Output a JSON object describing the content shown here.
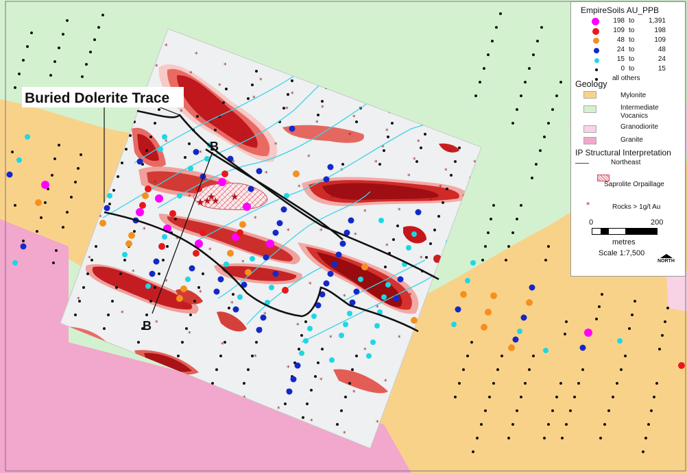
{
  "map_annotations": {
    "dolerite_label": "Buried Dolerite Trace",
    "section_start": "B",
    "section_end": "B"
  },
  "legend": {
    "soils_title": "EmpireSoils AU_PPB",
    "soil_classes": [
      {
        "lo": "198",
        "to": "to",
        "hi": "1,391",
        "color": "#ff00ff"
      },
      {
        "lo": "109",
        "to": "to",
        "hi": "198",
        "color": "#e8181a"
      },
      {
        "lo": "48",
        "to": "to",
        "hi": "109",
        "color": "#f5901e"
      },
      {
        "lo": "24",
        "to": "to",
        "hi": "48",
        "color": "#1428c8"
      },
      {
        "lo": "15",
        "to": "to",
        "hi": "24",
        "color": "#1ed6e6"
      },
      {
        "lo": "0",
        "to": "to",
        "hi": "15",
        "color": "#000000"
      }
    ],
    "all_others": "all others",
    "geology_title": "Geology",
    "geology_units": [
      {
        "label": "Mylonite",
        "color": "#f9d28a"
      },
      {
        "label": "Intermediate Vocanics",
        "color": "#d3f1cf"
      },
      {
        "label": "Granodiorite",
        "color": "#f8d2e6"
      },
      {
        "label": "Granite",
        "color": "#f2a7cc"
      }
    ],
    "ip_title": "IP Structural Interpretation",
    "ip_line_label": "Northeast",
    "saprolite_label": "Saprolite Orpaillage",
    "rocks_label": "Rocks > 1g/t Au",
    "scale_min": "0",
    "scale_max": "200",
    "scale_units": "metres",
    "scale_ratio": "Scale 1:7,500",
    "north_label": "NORTH"
  }
}
